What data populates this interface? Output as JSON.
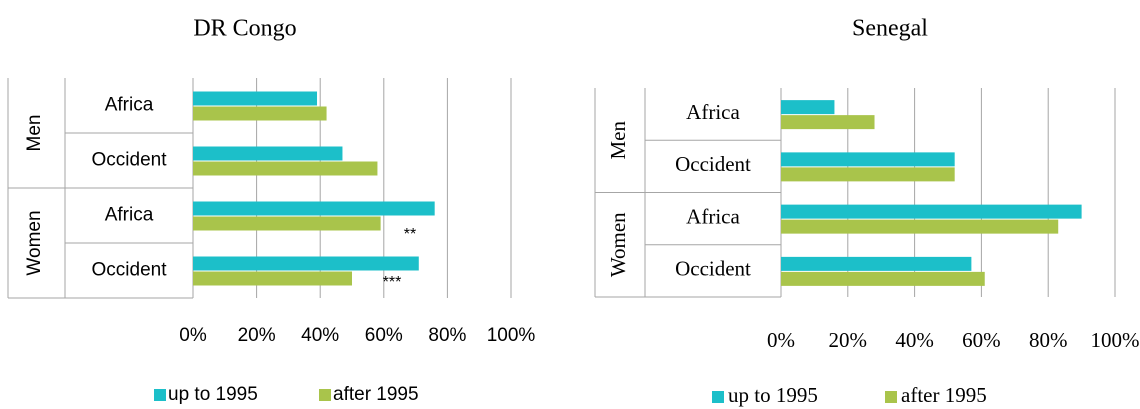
{
  "chart_data": [
    {
      "type": "bar",
      "title": "DR Congo",
      "groups": [
        "Men",
        "Women"
      ],
      "categories": [
        "Africa",
        "Occident",
        "Africa",
        "Occident"
      ],
      "series": [
        {
          "name": "up to 1995",
          "color": "#1cbfc9",
          "values": [
            39,
            47,
            76,
            71
          ]
        },
        {
          "name": "after 1995",
          "color": "#a9c44b",
          "values": [
            42,
            58,
            59,
            50
          ]
        }
      ],
      "annotations": [
        "**",
        "***"
      ],
      "xlim": [
        0,
        100
      ],
      "xticks": [
        {
          "value": 0,
          "label": "0%"
        },
        {
          "value": 20,
          "label": "20%"
        },
        {
          "value": 40,
          "label": "40%"
        },
        {
          "value": 60,
          "label": "60%"
        },
        {
          "value": 80,
          "label": "80%"
        },
        {
          "value": 100,
          "label": "100%"
        }
      ],
      "grid": true,
      "legend": "bottom"
    },
    {
      "type": "bar",
      "title": "Senegal",
      "groups": [
        "Men",
        "Women"
      ],
      "categories": [
        "Africa",
        "Occident",
        "Africa",
        "Occident"
      ],
      "series": [
        {
          "name": "up to 1995",
          "color": "#1cbfc9",
          "values": [
            16,
            52,
            90,
            57
          ]
        },
        {
          "name": "after 1995",
          "color": "#a9c44b",
          "values": [
            28,
            52,
            83,
            61
          ]
        }
      ],
      "xlim": [
        0,
        100
      ],
      "xticks": [
        {
          "value": 0,
          "label": "0%"
        },
        {
          "value": 20,
          "label": "20%"
        },
        {
          "value": 40,
          "label": "40%"
        },
        {
          "value": 60,
          "label": "60%"
        },
        {
          "value": 80,
          "label": "80%"
        },
        {
          "value": 100,
          "label": "100%"
        }
      ],
      "grid": true,
      "legend": "bottom"
    }
  ]
}
